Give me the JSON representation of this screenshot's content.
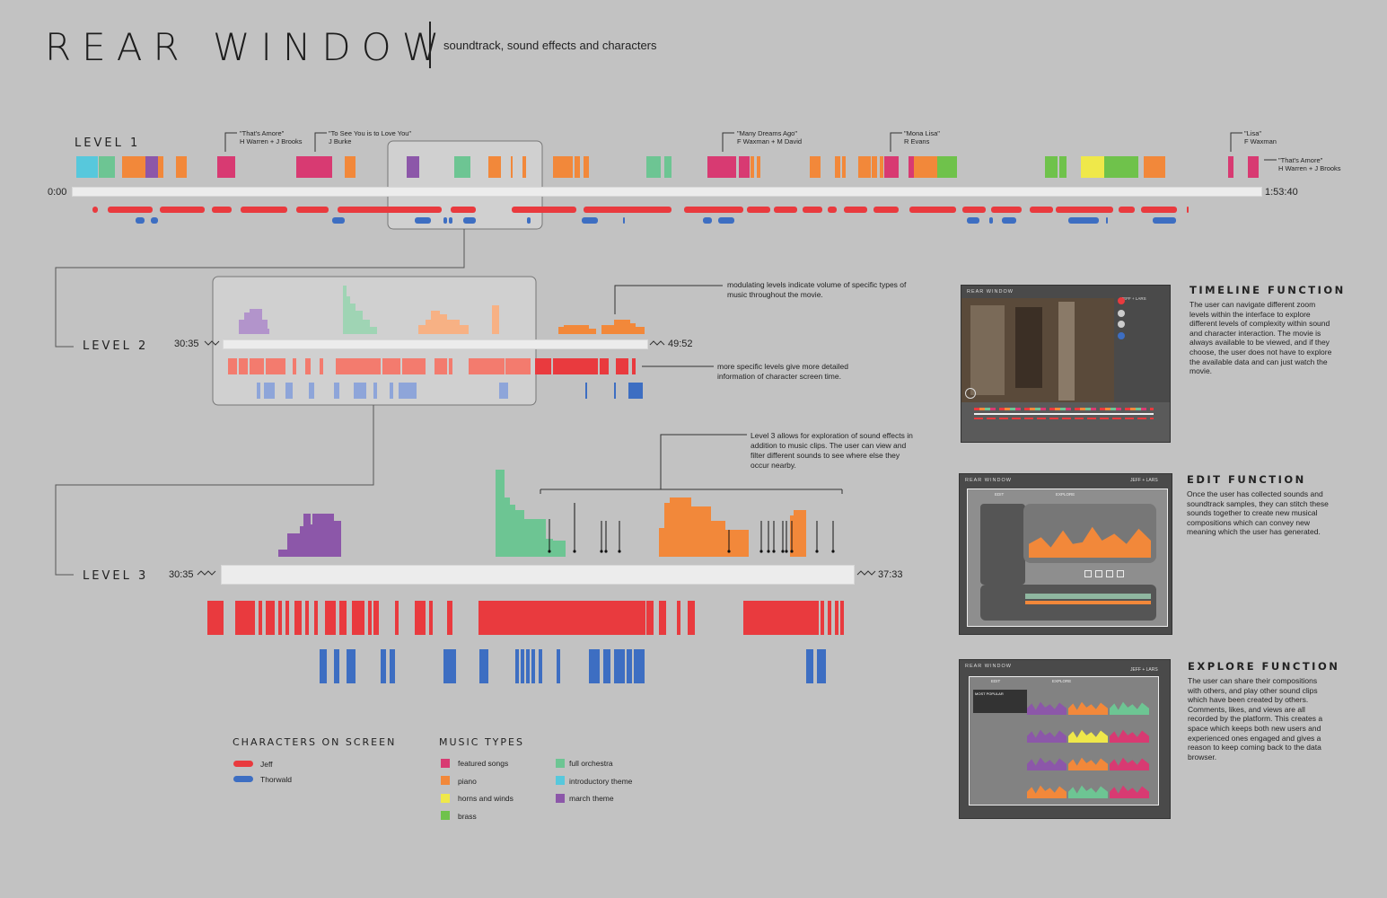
{
  "header": {
    "title": "REAR WINDOW",
    "subtitle": "soundtrack, sound effects and characters"
  },
  "colors": {
    "jeff": "#e93a3e",
    "thorwald": "#3d6ec2",
    "featured": "#d83a72",
    "piano": "#f2883a",
    "horns": "#efe84a",
    "brass": "#6fc24b",
    "orchestra": "#6dc593",
    "intro": "#57c8dc",
    "march": "#8c57a9"
  },
  "level1": {
    "label": "LEVEL 1",
    "start_time": "0:00",
    "end_time": "1:53:40",
    "songs": [
      {
        "title": "\"That's Amore\"",
        "credit": "H Warren + J Brooks"
      },
      {
        "title": "\"To See You is to Love You\"",
        "credit": "J Burke"
      },
      {
        "title": "\"Many Dreams Ago\"",
        "credit": "F Waxman + M David"
      },
      {
        "title": "\"Mona Lisa\"",
        "credit": "R Evans"
      },
      {
        "title": "\"Lisa\"",
        "credit": "F Waxman"
      },
      {
        "title": "\"That's Amore\"",
        "credit": "H Warren + J Brooks"
      }
    ]
  },
  "level2": {
    "label": "LEVEL 2",
    "start_time": "30:35",
    "end_time": "49:52",
    "note_volume": "modulating levels indicate volume of specific types of music throughout the movie.",
    "note_detail": "more specific levels give more detailed information of character screen time."
  },
  "level3": {
    "label": "LEVEL 3",
    "start_time": "30:35",
    "end_time": "37:33",
    "note_effects": "Level 3 allows for exploration of sound effects in addition to music clips. The user can view and filter different sounds to see where else they occur nearby."
  },
  "legend": {
    "characters_title": "CHARACTERS ON SCREEN",
    "characters": [
      "Jeff",
      "Thorwald"
    ],
    "music_title": "MUSIC TYPES",
    "music_col1": [
      "featured songs",
      "piano",
      "horns and winds",
      "brass"
    ],
    "music_col2": [
      "full orchestra",
      "introductory theme",
      "march theme"
    ]
  },
  "panels": {
    "timeline": {
      "title": "TIMELINE FUNCTION",
      "text": "The user can navigate different zoom levels within the interface to explore different levels of complexity within sound and character interaction. The movie is always available to be viewed, and if they choose, the user does not have to explore the available data and can just watch the movie."
    },
    "edit": {
      "title": "EDIT FUNCTION",
      "text": "Once the user has collected sounds and soundtrack samples, they can stitch these sounds together to create new musical compositions which can convey new meaning which the user has generated."
    },
    "explore": {
      "title": "EXPLORE FUNCTION",
      "text": "The user can share their compositions with others, and play other sound clips which have been created by others. Comments, likes, and views are all recorded by the platform. This creates a space which keeps both new users and experienced ones engaged and gives a reason to keep coming back to the data browser."
    }
  },
  "screens": {
    "app_title": "REAR WINDOW",
    "user_label": "JEFF + LARS",
    "tab_edit": "EDIT",
    "tab_explore": "EXPLORE",
    "most_popular": "MOST POPULAR"
  }
}
